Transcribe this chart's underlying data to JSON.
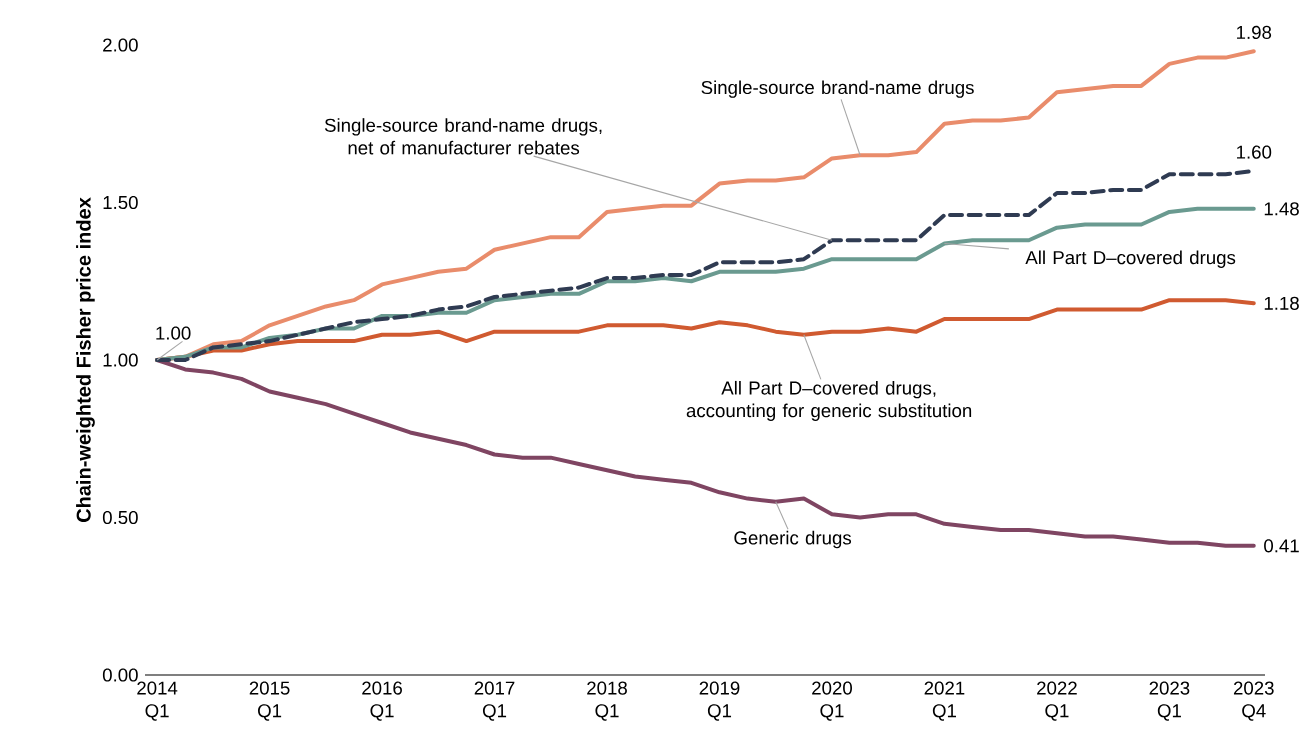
{
  "chart_data": {
    "type": "line",
    "ylabel": "Chain-weighted Fisher price index",
    "categories": [
      "2014 Q1",
      null,
      null,
      null,
      "2015 Q1",
      null,
      null,
      null,
      "2016 Q1",
      null,
      null,
      null,
      "2017 Q1",
      null,
      null,
      null,
      "2018 Q1",
      null,
      null,
      null,
      "2019 Q1",
      null,
      null,
      null,
      "2020 Q1",
      null,
      null,
      null,
      "2021 Q1",
      null,
      null,
      null,
      "2022 Q1",
      null,
      null,
      null,
      "2023 Q1",
      null,
      null,
      "2023 Q4"
    ],
    "ylim": [
      0,
      2
    ],
    "yticks": [
      {
        "value": 0,
        "label": "0.00"
      },
      {
        "value": 0.5,
        "label": "0.50"
      },
      {
        "value": 1,
        "label": "1.00"
      },
      {
        "value": 1.5,
        "label": "1.50"
      },
      {
        "value": 2,
        "label": "2.00"
      }
    ],
    "grid": false,
    "marker": "none",
    "series": [
      {
        "name": "All Part D–covered drugs, accounting for generic substitution",
        "color": "#d05a30",
        "values": [
          1.0,
          1.01,
          1.03,
          1.03,
          1.05,
          1.06,
          1.06,
          1.06,
          1.08,
          1.08,
          1.09,
          1.06,
          1.09,
          1.09,
          1.09,
          1.09,
          1.11,
          1.11,
          1.11,
          1.1,
          1.12,
          1.11,
          1.09,
          1.08,
          1.09,
          1.09,
          1.1,
          1.09,
          1.13,
          1.13,
          1.13,
          1.13,
          1.16,
          1.16,
          1.16,
          1.16,
          1.19,
          1.19,
          1.19,
          1.18
        ],
        "value_labels": [
          null,
          null,
          null,
          null,
          null,
          null,
          null,
          null,
          null,
          null,
          null,
          null,
          null,
          null,
          null,
          null,
          null,
          null,
          null,
          null,
          null,
          null,
          null,
          null,
          null,
          null,
          null,
          null,
          null,
          null,
          null,
          null,
          null,
          null,
          null,
          null,
          null,
          null,
          null,
          "1.18"
        ]
      },
      {
        "name": "Generic drugs",
        "color": "#7f4562",
        "values": [
          1.0,
          0.97,
          0.96,
          0.94,
          0.9,
          0.88,
          0.86,
          0.83,
          0.8,
          0.77,
          0.75,
          0.73,
          0.7,
          0.69,
          0.69,
          0.67,
          0.65,
          0.63,
          0.62,
          0.61,
          0.58,
          0.56,
          0.55,
          0.56,
          0.51,
          0.5,
          0.51,
          0.51,
          0.48,
          0.47,
          0.46,
          0.46,
          0.45,
          0.44,
          0.44,
          0.43,
          0.42,
          0.42,
          0.41,
          0.41
        ],
        "value_labels": [
          null,
          null,
          null,
          null,
          null,
          null,
          null,
          null,
          null,
          null,
          null,
          null,
          null,
          null,
          null,
          null,
          null,
          null,
          null,
          null,
          null,
          null,
          null,
          null,
          null,
          null,
          null,
          null,
          null,
          null,
          null,
          null,
          null,
          null,
          null,
          null,
          null,
          null,
          null,
          "0.41"
        ]
      },
      {
        "name": "Single-source brand-name drugs",
        "color": "#e98c6b",
        "values": [
          1.0,
          1.01,
          1.05,
          1.06,
          1.11,
          1.14,
          1.17,
          1.19,
          1.24,
          1.26,
          1.28,
          1.29,
          1.35,
          1.37,
          1.39,
          1.39,
          1.47,
          1.48,
          1.49,
          1.49,
          1.56,
          1.57,
          1.57,
          1.58,
          1.64,
          1.65,
          1.65,
          1.66,
          1.75,
          1.76,
          1.76,
          1.77,
          1.85,
          1.86,
          1.87,
          1.87,
          1.94,
          1.96,
          1.96,
          1.98
        ],
        "value_labels": [
          "1.00",
          null,
          null,
          null,
          null,
          null,
          null,
          null,
          null,
          null,
          null,
          null,
          null,
          null,
          null,
          null,
          null,
          null,
          null,
          null,
          null,
          null,
          null,
          null,
          null,
          null,
          null,
          null,
          null,
          null,
          null,
          null,
          null,
          null,
          null,
          null,
          null,
          null,
          null,
          "1.98"
        ]
      },
      {
        "name": "All Part D–covered drugs",
        "color": "#6a9a90",
        "values": [
          1.0,
          1.01,
          1.04,
          1.04,
          1.07,
          1.08,
          1.1,
          1.1,
          1.14,
          1.14,
          1.15,
          1.15,
          1.19,
          1.2,
          1.21,
          1.21,
          1.25,
          1.25,
          1.26,
          1.25,
          1.28,
          1.28,
          1.28,
          1.29,
          1.32,
          1.32,
          1.32,
          1.32,
          1.37,
          1.38,
          1.38,
          1.38,
          1.42,
          1.43,
          1.43,
          1.43,
          1.47,
          1.48,
          1.48,
          1.48
        ],
        "value_labels": [
          null,
          null,
          null,
          null,
          null,
          null,
          null,
          null,
          null,
          null,
          null,
          null,
          null,
          null,
          null,
          null,
          null,
          null,
          null,
          null,
          null,
          null,
          null,
          null,
          null,
          null,
          null,
          null,
          null,
          null,
          null,
          null,
          null,
          null,
          null,
          null,
          null,
          null,
          null,
          "1.48"
        ]
      },
      {
        "name": "Single-source brand-name drugs, net of manufacturer rebates",
        "color": "#2f3b52",
        "line_style": "dashed",
        "values": [
          1.0,
          1.0,
          1.04,
          1.05,
          1.06,
          1.08,
          1.1,
          1.12,
          1.13,
          1.14,
          1.16,
          1.17,
          1.2,
          1.21,
          1.22,
          1.23,
          1.26,
          1.26,
          1.27,
          1.27,
          1.31,
          1.31,
          1.31,
          1.32,
          1.38,
          1.38,
          1.38,
          1.38,
          1.46,
          1.46,
          1.46,
          1.46,
          1.53,
          1.53,
          1.54,
          1.54,
          1.59,
          1.59,
          1.59,
          1.6
        ],
        "value_labels": [
          null,
          null,
          null,
          null,
          null,
          null,
          null,
          null,
          null,
          null,
          null,
          null,
          null,
          null,
          null,
          null,
          null,
          null,
          null,
          null,
          null,
          null,
          null,
          null,
          null,
          null,
          null,
          null,
          null,
          null,
          null,
          null,
          null,
          null,
          null,
          null,
          null,
          null,
          null,
          "1.60"
        ]
      }
    ]
  }
}
